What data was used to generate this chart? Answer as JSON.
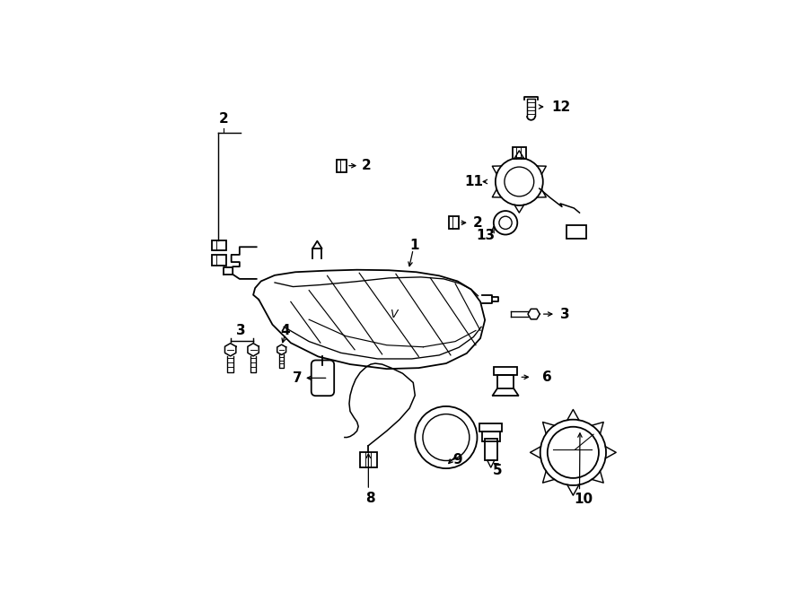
{
  "bg_color": "#ffffff",
  "line_color": "#000000",
  "lw": 1.3,
  "components": {
    "headlamp_outer": {
      "x": [
        0.16,
        0.19,
        0.23,
        0.29,
        0.36,
        0.44,
        0.51,
        0.57,
        0.615,
        0.645,
        0.655,
        0.645,
        0.625,
        0.595,
        0.555,
        0.505,
        0.445,
        0.375,
        0.305,
        0.24,
        0.195,
        0.165,
        0.152,
        0.148,
        0.16
      ],
      "y": [
        0.5,
        0.445,
        0.405,
        0.375,
        0.358,
        0.348,
        0.35,
        0.36,
        0.382,
        0.415,
        0.455,
        0.495,
        0.522,
        0.54,
        0.552,
        0.56,
        0.564,
        0.565,
        0.563,
        0.56,
        0.553,
        0.54,
        0.525,
        0.51,
        0.5
      ]
    },
    "headlamp_inner_top": {
      "x": [
        0.195,
        0.235,
        0.295,
        0.37,
        0.445,
        0.515,
        0.565,
        0.6,
        0.625,
        0.64
      ],
      "y": [
        0.537,
        0.528,
        0.532,
        0.539,
        0.547,
        0.549,
        0.545,
        0.535,
        0.522,
        0.508
      ]
    },
    "headlamp_inner_bottom": {
      "x": [
        0.215,
        0.27,
        0.34,
        0.42,
        0.495,
        0.555,
        0.598,
        0.63,
        0.647
      ],
      "y": [
        0.44,
        0.408,
        0.383,
        0.37,
        0.37,
        0.378,
        0.395,
        0.418,
        0.44
      ]
    }
  },
  "label_positions": {
    "1": [
      0.5,
      0.615,
      0.488,
      0.56
    ],
    "2a": [
      0.083,
      0.115,
      0.1,
      0.18
    ],
    "2b": [
      0.352,
      0.793,
      0.337,
      0.75
    ],
    "2c": [
      0.595,
      0.682,
      0.576,
      0.66
    ],
    "3a": [
      0.12,
      0.36,
      0.108,
      0.39
    ],
    "3b": [
      0.82,
      0.468,
      0.78,
      0.468
    ],
    "4": [
      0.218,
      0.358,
      0.208,
      0.39
    ],
    "5": [
      0.68,
      0.125,
      0.668,
      0.175
    ],
    "6": [
      0.79,
      0.325,
      0.757,
      0.325
    ],
    "7": [
      0.26,
      0.33,
      0.295,
      0.338
    ],
    "8": [
      0.4,
      0.063,
      0.4,
      0.107
    ],
    "9": [
      0.594,
      0.148,
      0.578,
      0.195
    ],
    "10": [
      0.868,
      0.063,
      0.858,
      0.098
    ],
    "11": [
      0.632,
      0.758,
      0.672,
      0.758
    ],
    "12": [
      0.82,
      0.9,
      0.786,
      0.9
    ],
    "13": [
      0.652,
      0.64,
      0.652,
      0.668
    ]
  }
}
